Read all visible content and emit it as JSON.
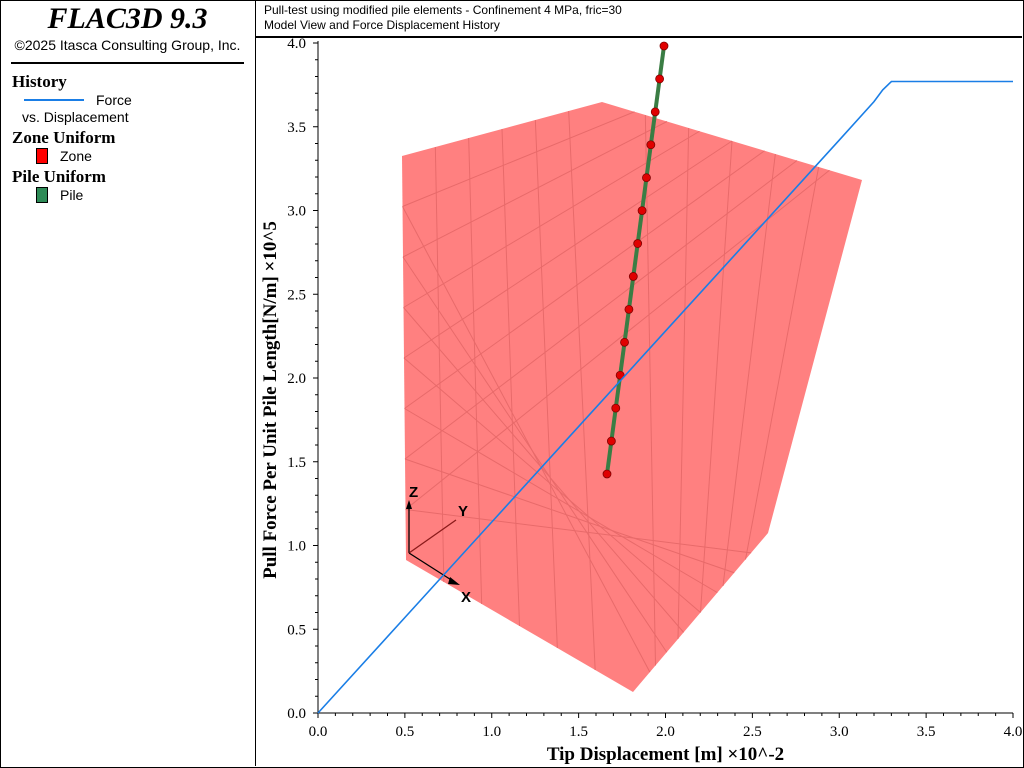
{
  "app": {
    "title": "FLAC3D 9.3",
    "copyright": "©2025 Itasca Consulting Group, Inc."
  },
  "legend": {
    "history_title": "History",
    "history_item_line1": "Force",
    "history_item_line2": "vs. Displacement",
    "zone_title": "Zone Uniform",
    "zone_item": "Zone",
    "pile_title": "Pile Uniform",
    "pile_item": "Pile"
  },
  "header": {
    "line1": "Pull-test using modified pile elements - Confinement 4 MPa, fric=30",
    "line2": "Model View and Force Displacement History"
  },
  "colors": {
    "history_line": "#1a7ee6",
    "zone": "#ff6b6b",
    "pile": "#3a7d44",
    "pile_node": "#e00000"
  },
  "triad": {
    "x": "X",
    "y": "Y",
    "z": "Z"
  },
  "chart_data": {
    "type": "line",
    "xlabel": "Tip Displacement [m] ×10^-2",
    "ylabel": "Pull Force Per Unit Pile Length[N/m] ×10^5",
    "xlim": [
      0.0,
      4.0
    ],
    "ylim": [
      0.0,
      4.0
    ],
    "xticks": [
      "0.0",
      "0.5",
      "1.0",
      "1.5",
      "2.0",
      "2.5",
      "3.0",
      "3.5",
      "4.0"
    ],
    "yticks": [
      "0.0",
      "0.5",
      "1.0",
      "1.5",
      "2.0",
      "2.5",
      "3.0",
      "3.5",
      "4.0"
    ],
    "grid": false,
    "series": [
      {
        "name": "Force vs. Displacement",
        "x": [
          0.0,
          0.5,
          1.0,
          1.5,
          2.0,
          2.5,
          3.0,
          3.2,
          3.25,
          3.3,
          3.5,
          4.0
        ],
        "y": [
          0.0,
          0.57,
          1.14,
          1.71,
          2.28,
          2.85,
          3.42,
          3.65,
          3.72,
          3.77,
          3.77,
          3.77
        ]
      }
    ]
  }
}
